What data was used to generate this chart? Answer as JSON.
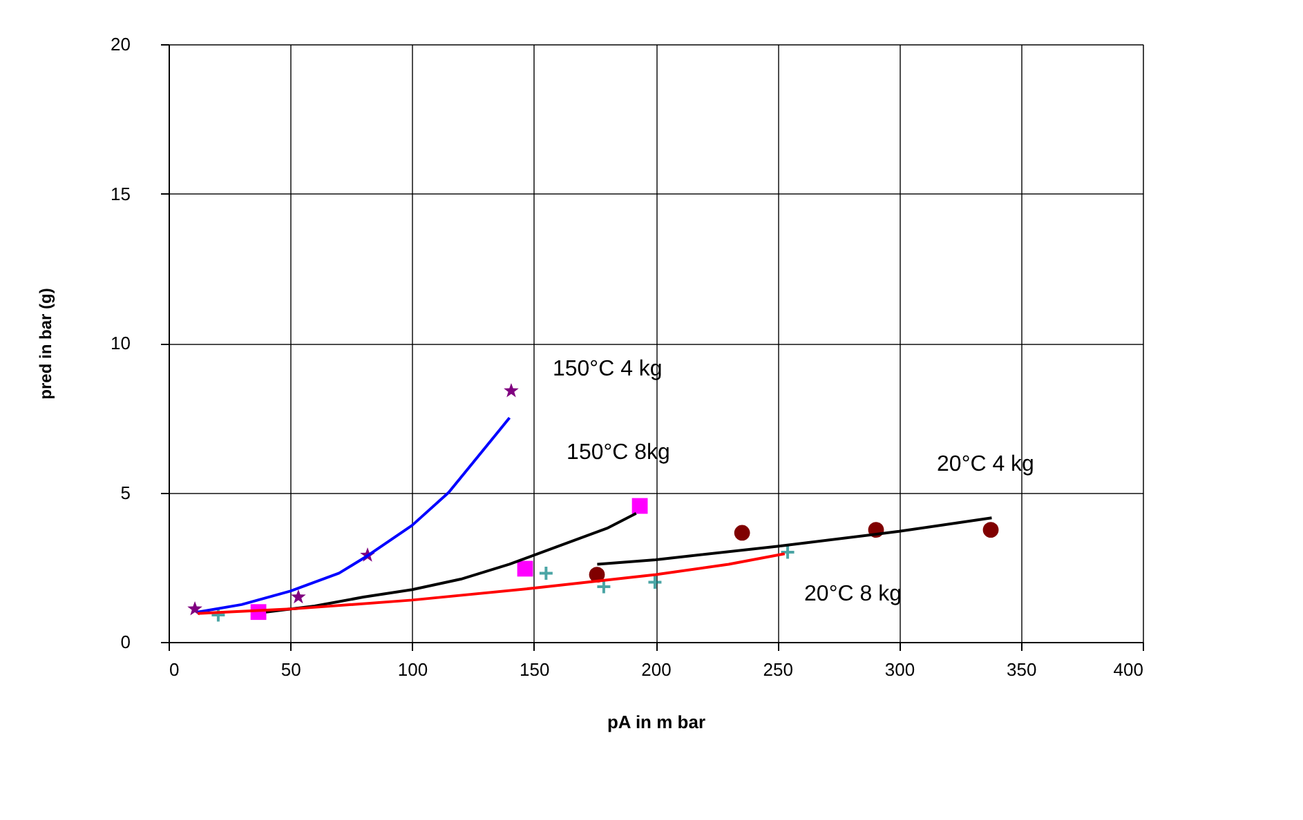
{
  "chart_data": {
    "type": "scatter",
    "xlabel": "pA in m bar",
    "ylabel": "pred in bar (g)",
    "xlim": [
      0,
      400
    ],
    "xticks": [
      0,
      50,
      100,
      150,
      200,
      250,
      300,
      350,
      400
    ],
    "ylim": [
      0,
      20
    ],
    "yticks": [
      0,
      5,
      10,
      15,
      20
    ],
    "grid": true,
    "series": [
      {
        "name": "150°C 4 kg",
        "type": "scatter",
        "marker": "star",
        "color": "#800080",
        "x": [
          10.8,
          53.3,
          81.7,
          140.7
        ],
        "values": [
          1.1,
          1.5,
          2.9,
          8.4
        ]
      },
      {
        "name": "150°C 8kg",
        "type": "scatter",
        "marker": "square",
        "color": "#ff00ff",
        "x": [
          36.9,
          146.4,
          193.5
        ],
        "values": [
          1.0,
          2.45,
          4.55
        ]
      },
      {
        "name": "20°C 4 kg",
        "type": "scatter",
        "marker": "circle",
        "color": "#800000",
        "x": [
          175.9,
          235.5,
          290.5,
          337.6
        ],
        "values": [
          2.25,
          3.65,
          3.75,
          3.75
        ]
      },
      {
        "name": "20°C 8 kg",
        "type": "scatter",
        "marker": "cross",
        "color": "#008080",
        "x": [
          20.4,
          155,
          178.7,
          199.7,
          254.2
        ],
        "values": [
          0.9,
          2.3,
          1.85,
          2.0,
          3.0
        ]
      },
      {
        "type": "line",
        "color": "#0000ff",
        "x": [
          12,
          30,
          50,
          70,
          82,
          100,
          115,
          125,
          135,
          140
        ],
        "values": [
          1.0,
          1.25,
          1.7,
          2.3,
          2.9,
          3.9,
          5.0,
          6.0,
          7.0,
          7.5
        ]
      },
      {
        "type": "line",
        "color": "#000000",
        "x": [
          40,
          60,
          80,
          100,
          120,
          140,
          160,
          180,
          192
        ],
        "values": [
          1.0,
          1.2,
          1.5,
          1.75,
          2.1,
          2.6,
          3.2,
          3.8,
          4.3
        ]
      },
      {
        "type": "line",
        "color": "#000000",
        "x": [
          176,
          200,
          250,
          300,
          338
        ],
        "values": [
          2.6,
          2.75,
          3.2,
          3.7,
          4.15
        ]
      },
      {
        "type": "line",
        "color": "#ff0000",
        "x": [
          12,
          50,
          100,
          150,
          200,
          230,
          253
        ],
        "values": [
          0.95,
          1.1,
          1.4,
          1.8,
          2.25,
          2.6,
          2.95
        ]
      }
    ]
  }
}
